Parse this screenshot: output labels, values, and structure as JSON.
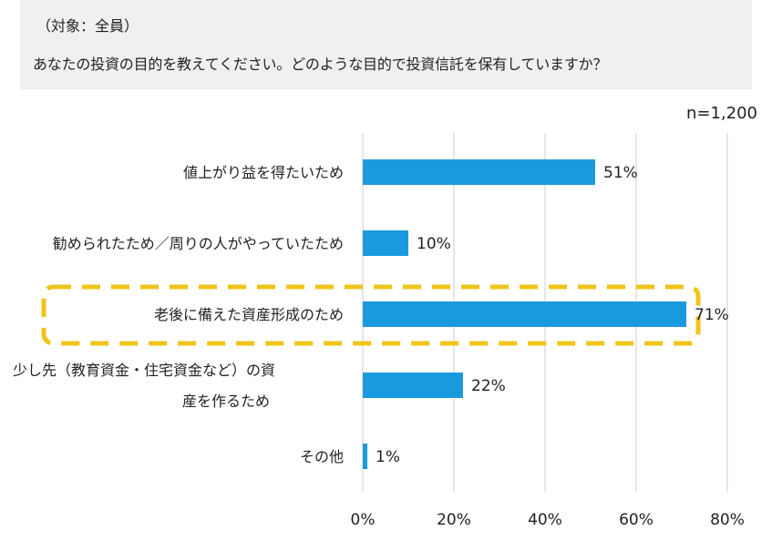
{
  "question": {
    "target": "（対象：全員）",
    "text": "あなたの投資の目的を教えてください。どのような目的で投資信託を保有していますか？"
  },
  "sample_size": "n=1,200",
  "colors": {
    "bar": "#1a9ade",
    "highlight": "#f0c419",
    "grid": "#cccccc",
    "question_bg": "#f0f0f0"
  },
  "chart_data": {
    "type": "bar",
    "orientation": "horizontal",
    "title": "あなたの投資の目的を教えてください。どのような目的で投資信託を保有していますか？",
    "categories": [
      [
        "値上がり益を得たいため"
      ],
      [
        "勧められたため／周りの人がやっていたため"
      ],
      [
        "老後に備えた資産形成のため"
      ],
      [
        "少し先（教育資金・住宅資金など）の資",
        "産を作るため"
      ],
      [
        "その他"
      ]
    ],
    "values": [
      51,
      10,
      71,
      22,
      1
    ],
    "value_labels": [
      "51%",
      "10%",
      "71%",
      "22%",
      "1%"
    ],
    "highlighted_index": 2,
    "xlim": [
      0,
      80
    ],
    "xticks": [
      0,
      20,
      40,
      60,
      80
    ],
    "xtick_labels": [
      "0%",
      "20%",
      "40%",
      "60%",
      "80%"
    ],
    "xlabel": "",
    "ylabel": "",
    "grid": true,
    "unit": "%"
  }
}
